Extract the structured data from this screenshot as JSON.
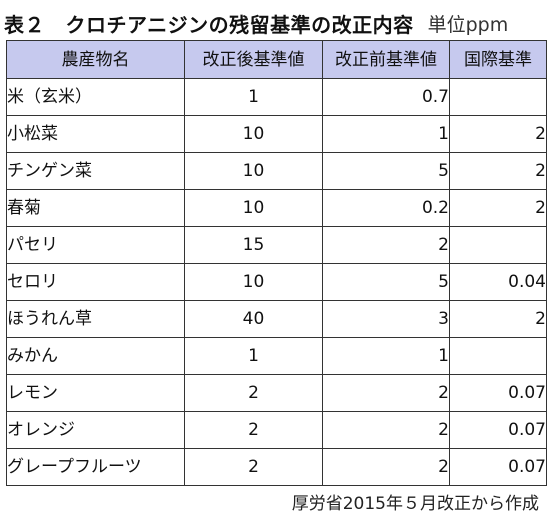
{
  "header": {
    "title": "表２　クロチアニジンの残留基準の改正内容",
    "unit": "単位ppm"
  },
  "table": {
    "columns": [
      "農産物名",
      "改正後基準値",
      "改正前基準値",
      "国際基準"
    ],
    "rows": [
      {
        "crop": "米（玄米）",
        "after": "1",
        "before": "0.7",
        "intl": ""
      },
      {
        "crop": "小松菜",
        "after": "10",
        "before": "1",
        "intl": "2"
      },
      {
        "crop": "チンゲン菜",
        "after": "10",
        "before": "5",
        "intl": "2"
      },
      {
        "crop": "春菊",
        "after": "10",
        "before": "0.2",
        "intl": "2"
      },
      {
        "crop": "パセリ",
        "after": "15",
        "before": "2",
        "intl": ""
      },
      {
        "crop": "セロリ",
        "after": "10",
        "before": "5",
        "intl": "0.04"
      },
      {
        "crop": "ほうれん草",
        "after": "40",
        "before": "3",
        "intl": "2"
      },
      {
        "crop": "みかん",
        "after": "1",
        "before": "1",
        "intl": ""
      },
      {
        "crop": "レモン",
        "after": "2",
        "before": "2",
        "intl": "0.07"
      },
      {
        "crop": "オレンジ",
        "after": "2",
        "before": "2",
        "intl": "0.07"
      },
      {
        "crop": "グレープフルーツ",
        "after": "2",
        "before": "2",
        "intl": "0.07"
      }
    ]
  },
  "footer": {
    "source": "厚労省2015年５月改正から作成"
  },
  "colors": {
    "header_background": "#c6c9ee",
    "border": "#333333"
  }
}
